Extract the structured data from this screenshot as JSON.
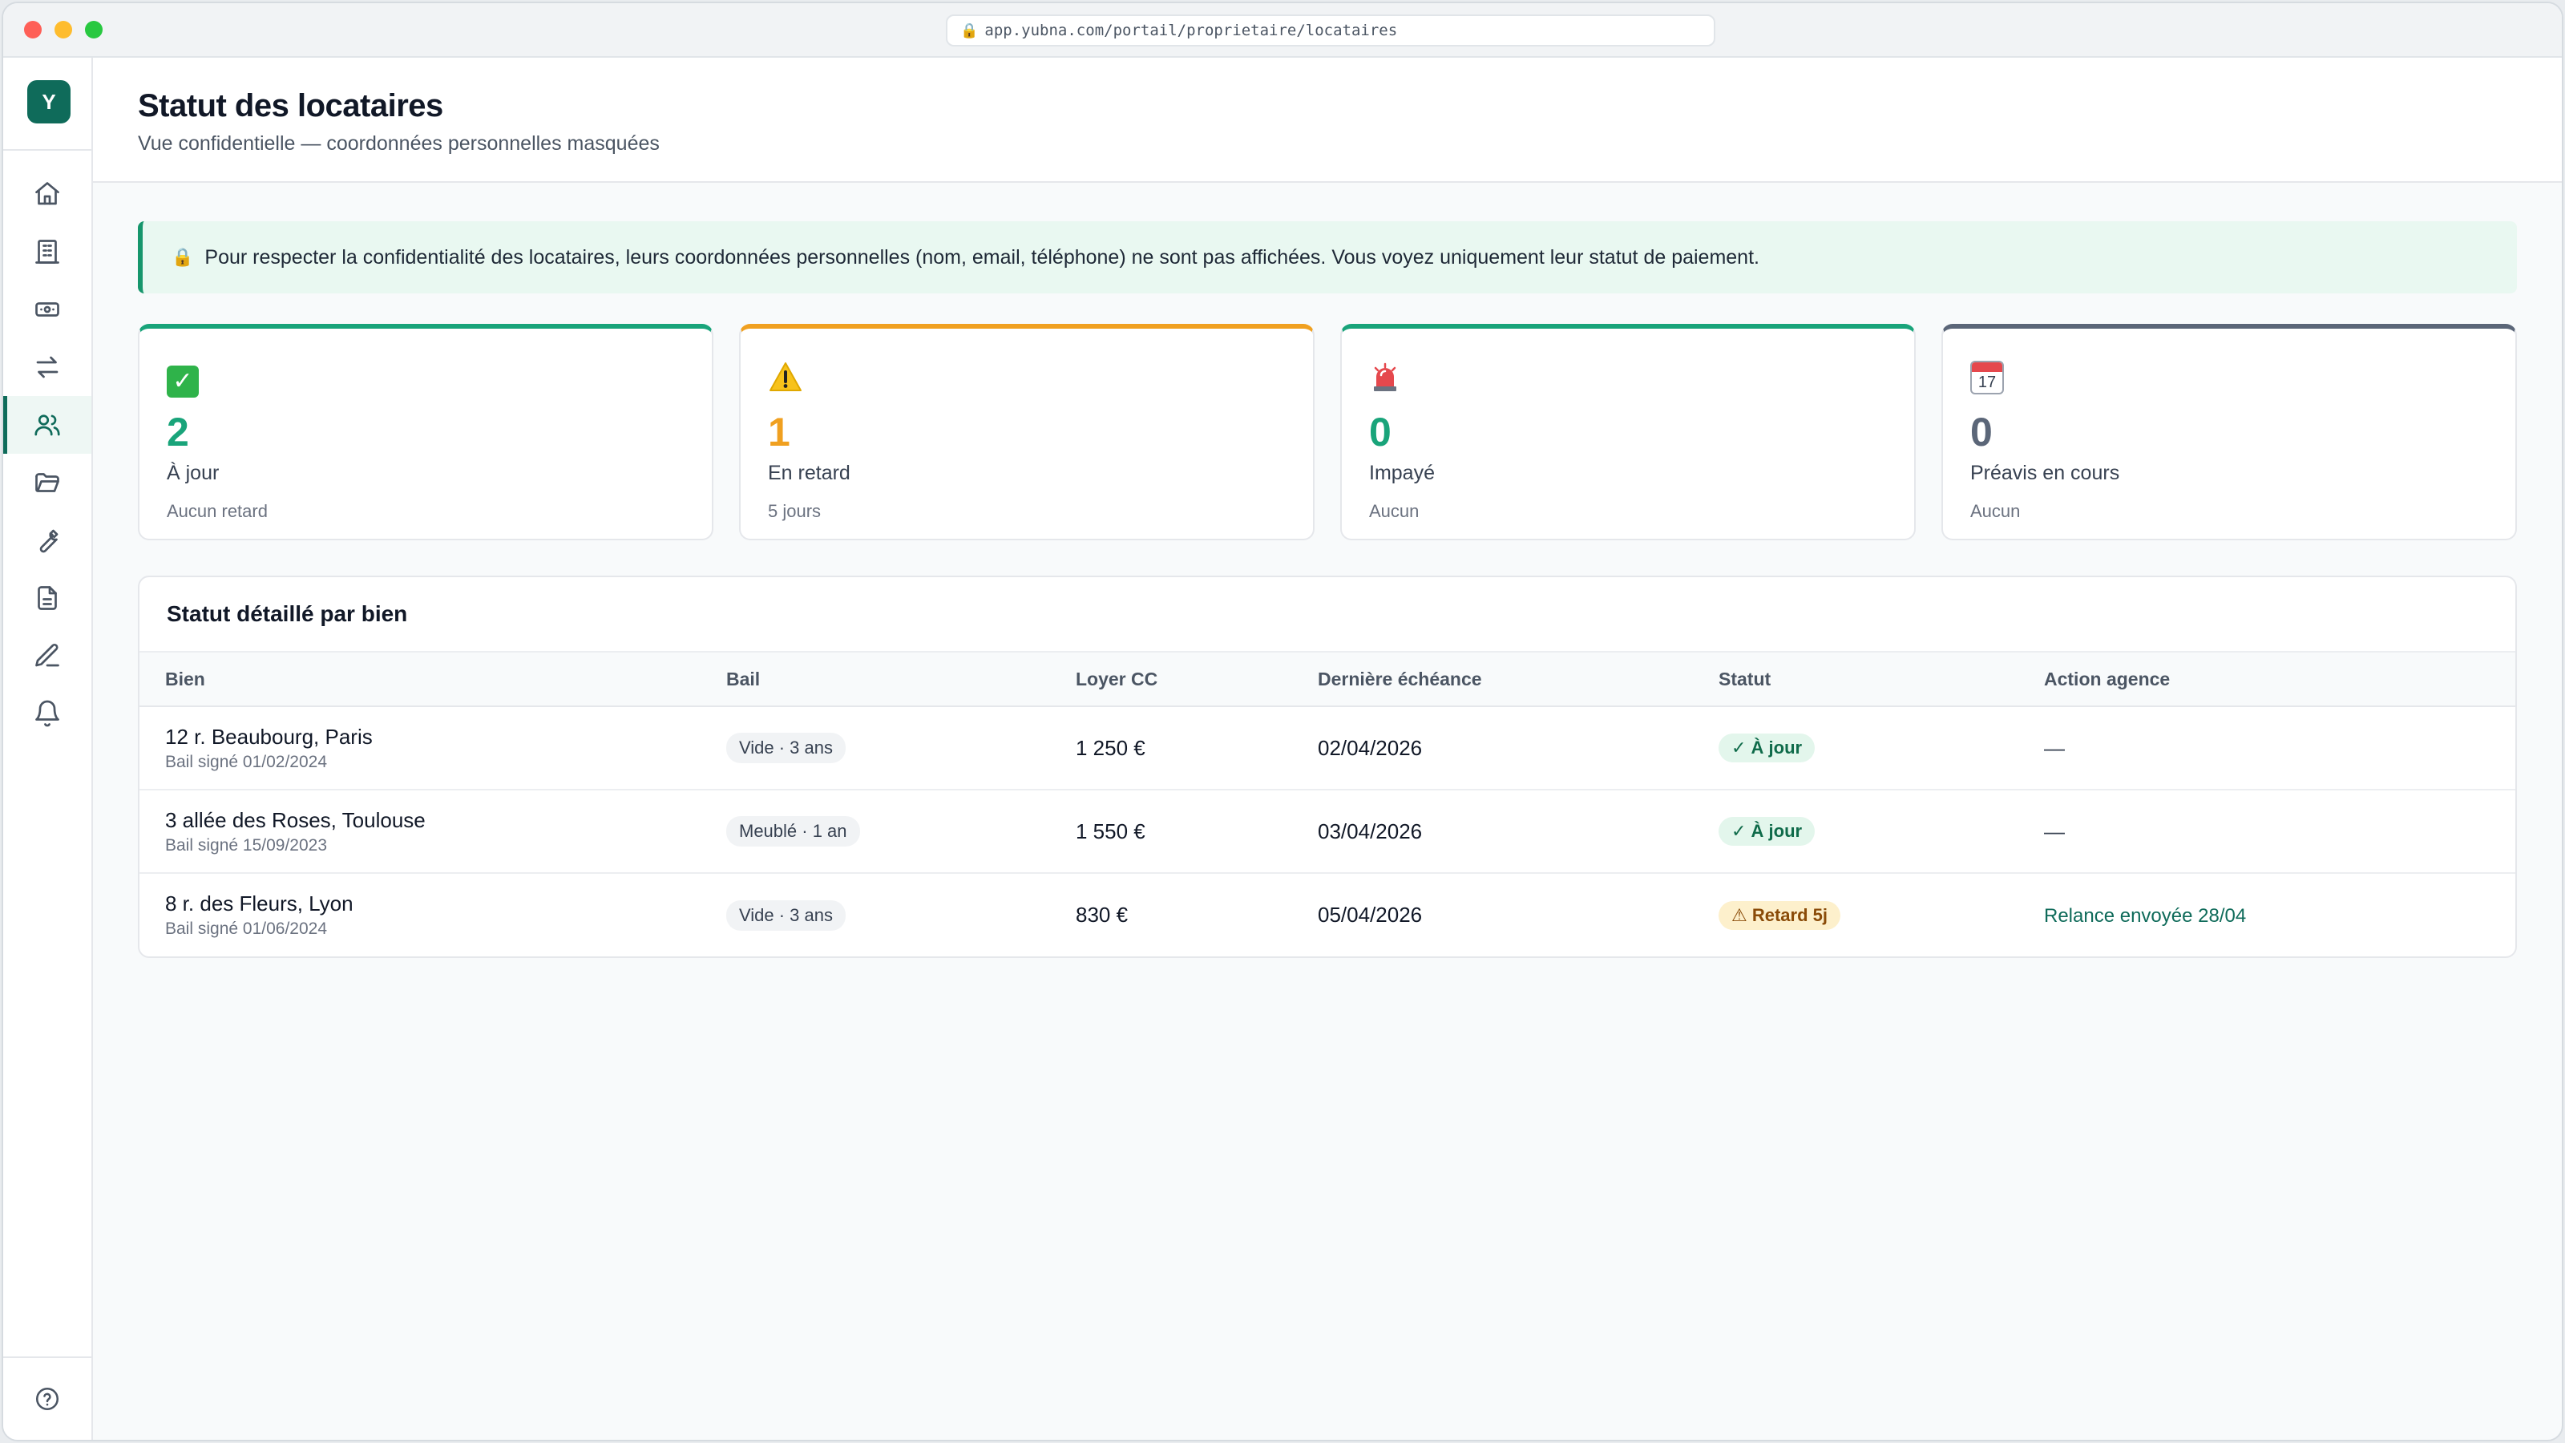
{
  "browser": {
    "url": "app.yubna.com/portail/proprietaire/locataires"
  },
  "sidebar": {
    "logo": "Y",
    "items": [
      {
        "icon": "home-icon",
        "active": false
      },
      {
        "icon": "building-icon",
        "active": false
      },
      {
        "icon": "banknote-icon",
        "active": false
      },
      {
        "icon": "transfer-icon",
        "active": false
      },
      {
        "icon": "users-icon",
        "active": true
      },
      {
        "icon": "folder-icon",
        "active": false
      },
      {
        "icon": "wrench-icon",
        "active": false
      },
      {
        "icon": "document-icon",
        "active": false
      },
      {
        "icon": "pen-icon",
        "active": false
      },
      {
        "icon": "bell-icon",
        "active": false
      }
    ],
    "help_icon": "help-circle-icon"
  },
  "header": {
    "title": "Statut des locataires",
    "subtitle": "Vue confidentielle — coordonnées personnelles masquées"
  },
  "notice": {
    "icon": "lock-icon",
    "text": "Pour respecter la confidentialité des locataires, leurs coordonnées personnelles (nom, email, téléphone) ne sont pas affichées. Vous voyez uniquement leur statut de paiement."
  },
  "cards": [
    {
      "icon": "check-mark-icon",
      "value": "2",
      "label": "À jour",
      "sub": "Aucun retard",
      "color": "#19a47a"
    },
    {
      "icon": "warning-icon",
      "value": "1",
      "label": "En retard",
      "sub": "5 jours",
      "color": "#f0a020"
    },
    {
      "icon": "siren-icon",
      "value": "0",
      "label": "Impayé",
      "sub": "Aucun",
      "color": "#19a47a"
    },
    {
      "icon": "calendar-icon",
      "icon_text": "17",
      "value": "0",
      "label": "Préavis en cours",
      "sub": "Aucun",
      "color": "#5b6678"
    }
  ],
  "table": {
    "title": "Statut détaillé par bien",
    "columns": [
      "Bien",
      "Bail",
      "Loyer CC",
      "Dernière échéance",
      "Statut",
      "Action agence"
    ],
    "rows": [
      {
        "bien": "12 r. Beaubourg, Paris",
        "bail_signe": "Bail signé 01/02/2024",
        "bail": "Vide · 3 ans",
        "loyer": "1 250 €",
        "echeance": "02/04/2026",
        "statut": "✓ À jour",
        "statut_type": "ok",
        "action": "—"
      },
      {
        "bien": "3 allée des Roses, Toulouse",
        "bail_signe": "Bail signé 15/09/2023",
        "bail": "Meublé · 1 an",
        "loyer": "1 550 €",
        "echeance": "03/04/2026",
        "statut": "✓ À jour",
        "statut_type": "ok",
        "action": "—"
      },
      {
        "bien": "8 r. des Fleurs, Lyon",
        "bail_signe": "Bail signé 01/06/2024",
        "bail": "Vide · 3 ans",
        "loyer": "830 €",
        "echeance": "05/04/2026",
        "statut": "⚠ Retard 5j",
        "statut_type": "late",
        "action": "Relance envoyée 28/04"
      }
    ]
  }
}
